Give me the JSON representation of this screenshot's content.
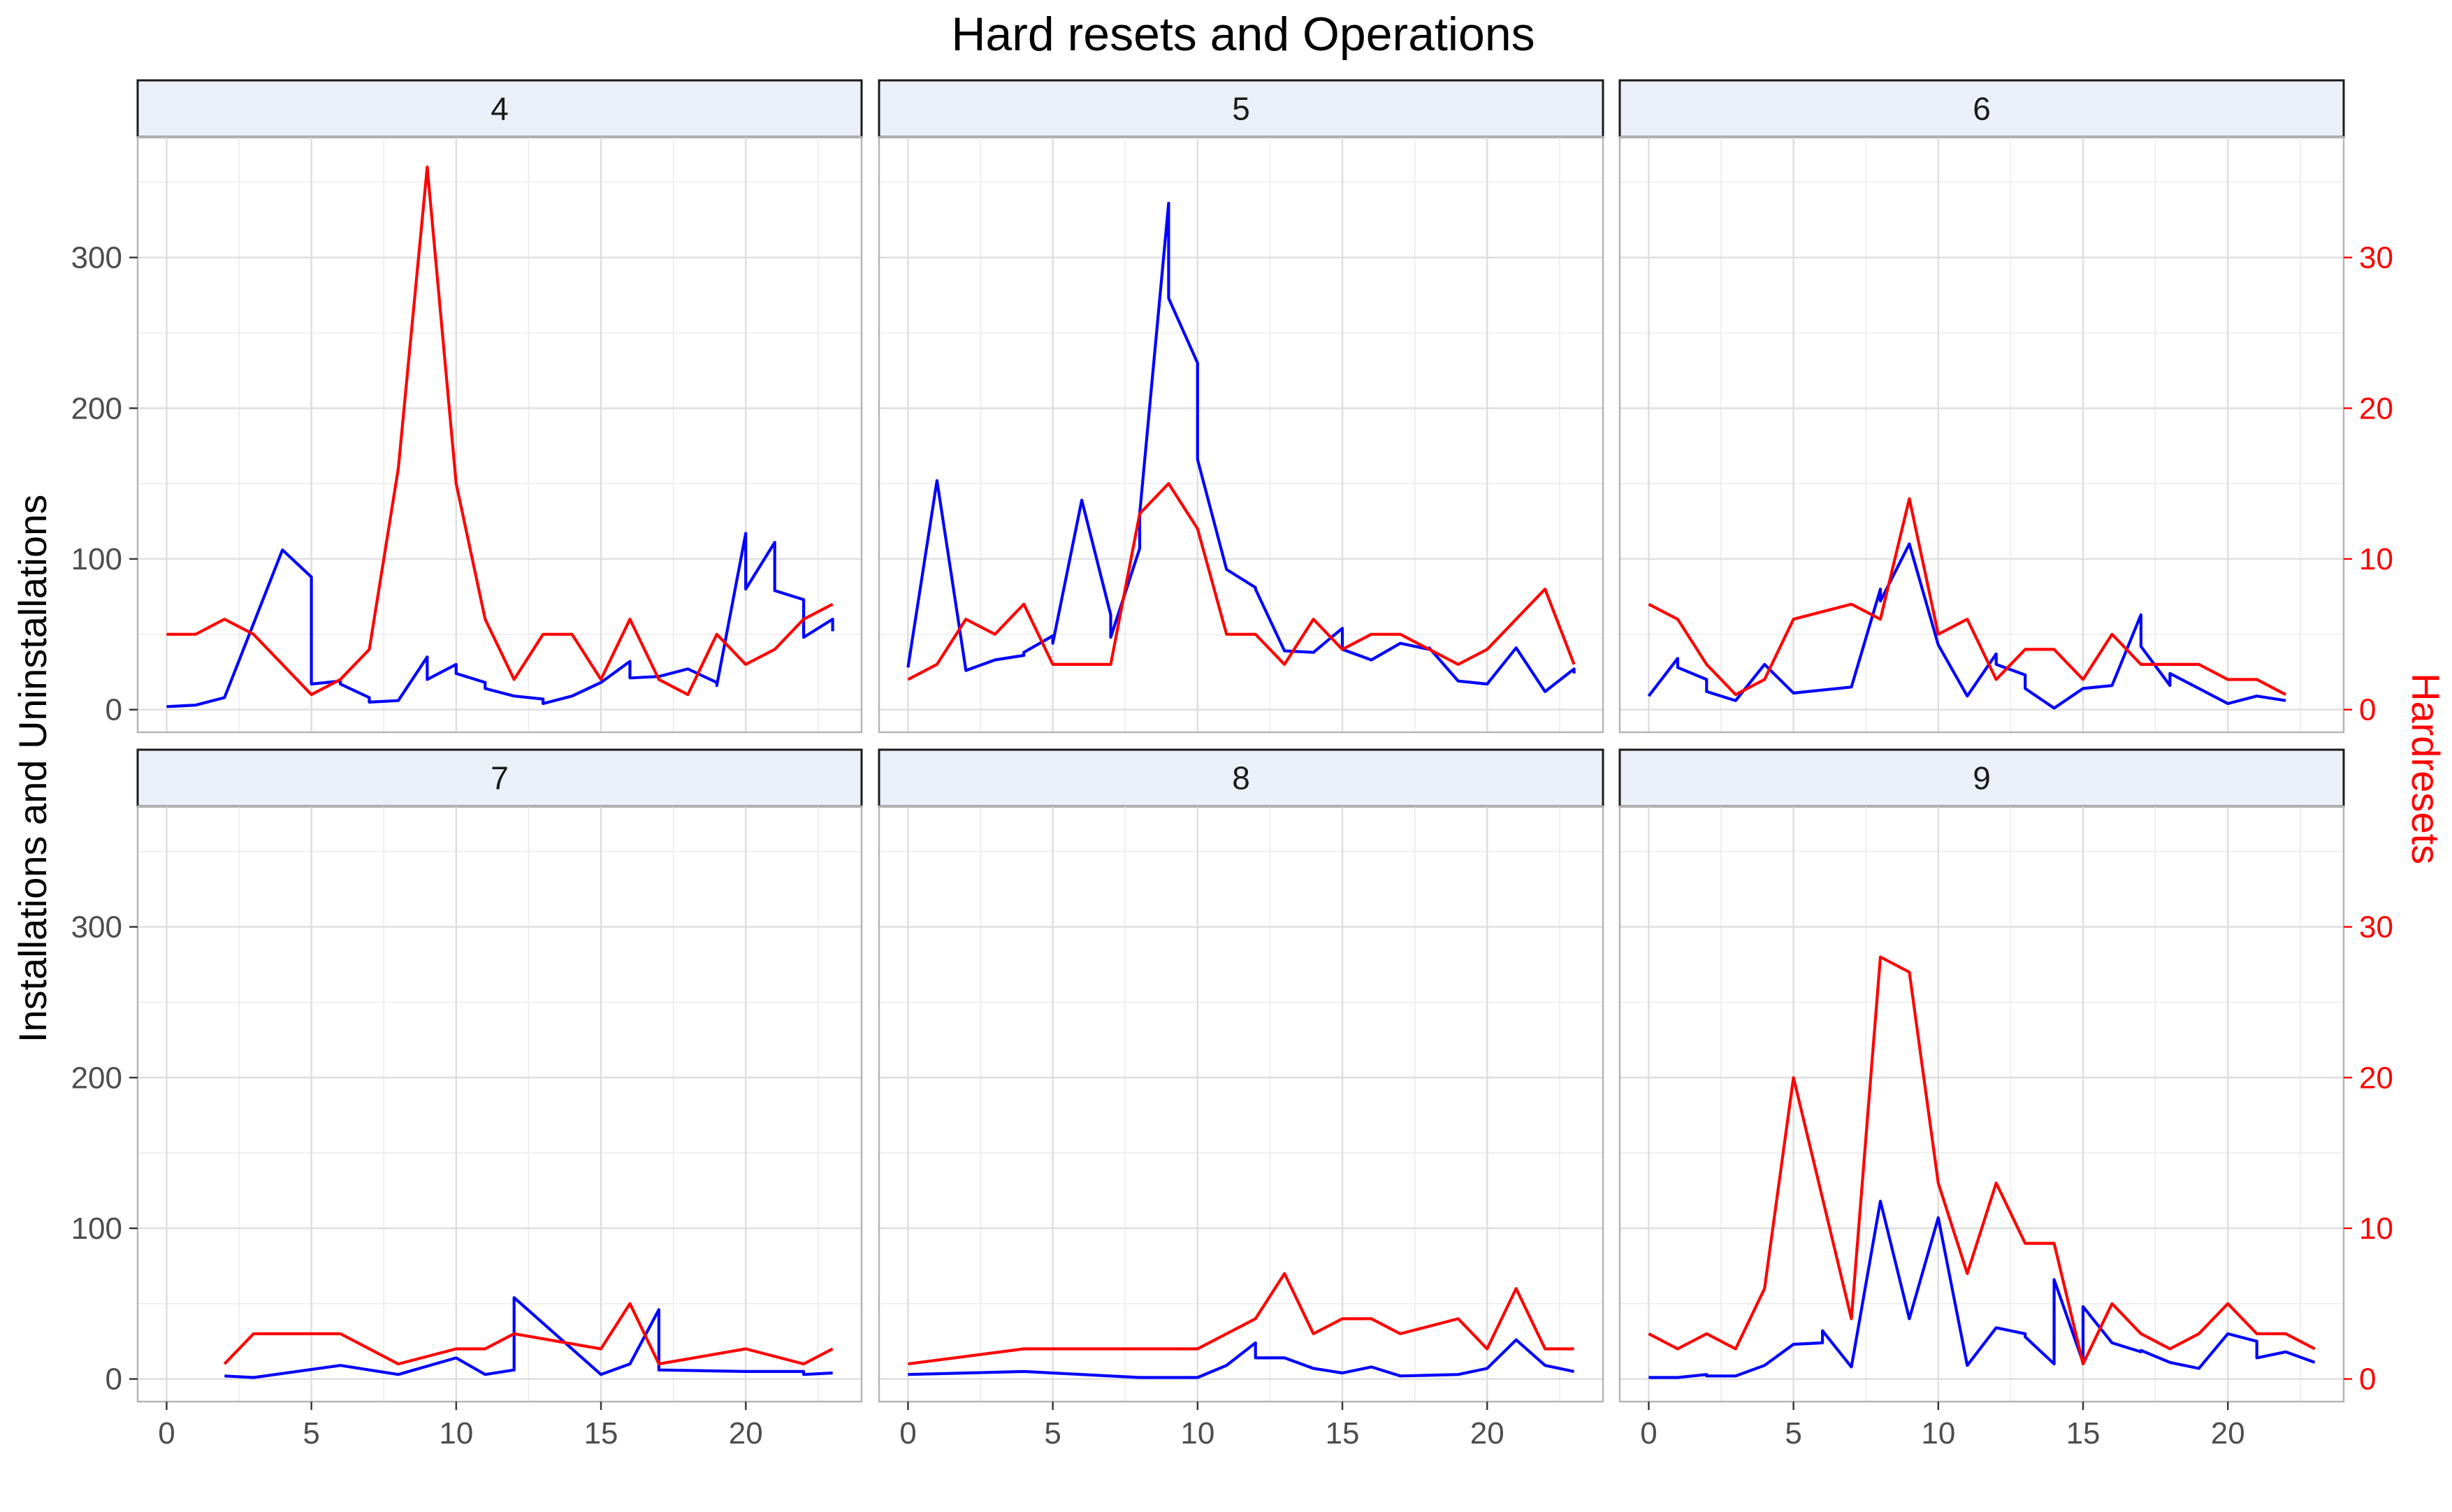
{
  "chart_data": {
    "type": "line",
    "title": "Hard resets and Operations",
    "y_left_label": "Installations and Uninstallations",
    "y_right_label": "Hardresets",
    "xlim": [
      -1,
      24
    ],
    "x_ticks": [
      0,
      5,
      10,
      15,
      20
    ],
    "y_left_lim": [
      -15,
      380
    ],
    "y_left_ticks": [
      0,
      100,
      200,
      300
    ],
    "y_right_lim": [
      -1.5,
      38
    ],
    "y_right_ticks": [
      0,
      10,
      20,
      30
    ],
    "grid": true,
    "colors": {
      "operations": "#0000ff",
      "hardresets": "#ff0000",
      "strip_bg": "#ebf0f8",
      "grid": "#dedede"
    },
    "panels": [
      {
        "label": "4",
        "operations": [
          [
            0,
            2
          ],
          [
            1,
            3
          ],
          [
            2,
            8
          ],
          [
            4,
            106
          ],
          [
            5,
            88
          ],
          [
            5,
            17
          ],
          [
            6,
            19
          ],
          [
            6,
            17
          ],
          [
            7,
            8
          ],
          [
            7,
            5
          ],
          [
            8,
            6
          ],
          [
            9,
            35
          ],
          [
            9,
            20
          ],
          [
            10,
            30
          ],
          [
            10,
            24
          ],
          [
            11,
            18
          ],
          [
            11,
            14
          ],
          [
            12,
            9
          ],
          [
            13,
            7
          ],
          [
            13,
            4
          ],
          [
            14,
            9
          ],
          [
            15,
            18
          ],
          [
            16,
            32
          ],
          [
            16,
            21
          ],
          [
            17,
            22
          ],
          [
            18,
            27
          ],
          [
            19,
            18
          ],
          [
            19,
            16
          ],
          [
            20,
            117
          ],
          [
            20,
            80
          ],
          [
            21,
            111
          ],
          [
            21,
            79
          ],
          [
            22,
            73
          ],
          [
            22,
            48
          ],
          [
            23,
            60
          ],
          [
            23,
            52
          ]
        ],
        "hardresets": [
          [
            0,
            5
          ],
          [
            1,
            5
          ],
          [
            2,
            6
          ],
          [
            3,
            5
          ],
          [
            4,
            3
          ],
          [
            5,
            1
          ],
          [
            6,
            2
          ],
          [
            7,
            4
          ],
          [
            8,
            16
          ],
          [
            9,
            36
          ],
          [
            10,
            15
          ],
          [
            11,
            6
          ],
          [
            12,
            2
          ],
          [
            13,
            5
          ],
          [
            14,
            5
          ],
          [
            15,
            2
          ],
          [
            16,
            6
          ],
          [
            17,
            2
          ],
          [
            18,
            1
          ],
          [
            19,
            5
          ],
          [
            20,
            3
          ],
          [
            21,
            4
          ],
          [
            22,
            6
          ],
          [
            23,
            7
          ]
        ]
      },
      {
        "label": "5",
        "operations": [
          [
            0,
            28
          ],
          [
            1,
            152
          ],
          [
            2,
            26
          ],
          [
            3,
            33
          ],
          [
            4,
            36
          ],
          [
            4,
            38
          ],
          [
            5,
            49
          ],
          [
            5,
            44
          ],
          [
            6,
            139
          ],
          [
            7,
            63
          ],
          [
            7,
            48
          ],
          [
            8,
            107
          ],
          [
            8,
            130
          ],
          [
            9,
            336
          ],
          [
            9,
            273
          ],
          [
            10,
            230
          ],
          [
            10,
            166
          ],
          [
            11,
            93
          ],
          [
            12,
            81
          ],
          [
            12,
            80
          ],
          [
            13,
            39
          ],
          [
            14,
            38
          ],
          [
            15,
            54
          ],
          [
            15,
            40
          ],
          [
            16,
            33
          ],
          [
            17,
            44
          ],
          [
            18,
            40
          ],
          [
            18,
            41
          ],
          [
            19,
            19
          ],
          [
            20,
            17
          ],
          [
            21,
            41
          ],
          [
            22,
            12
          ],
          [
            23,
            27
          ],
          [
            23,
            24
          ]
        ],
        "hardresets": [
          [
            0,
            2
          ],
          [
            1,
            3
          ],
          [
            2,
            6
          ],
          [
            3,
            5
          ],
          [
            4,
            7
          ],
          [
            5,
            3
          ],
          [
            6,
            3
          ],
          [
            7,
            3
          ],
          [
            8,
            13
          ],
          [
            9,
            15
          ],
          [
            10,
            12
          ],
          [
            11,
            5
          ],
          [
            12,
            5
          ],
          [
            13,
            3
          ],
          [
            14,
            6
          ],
          [
            15,
            4
          ],
          [
            16,
            5
          ],
          [
            17,
            5
          ],
          [
            18,
            4
          ],
          [
            19,
            3
          ],
          [
            20,
            4
          ],
          [
            21,
            6
          ],
          [
            22,
            8
          ],
          [
            23,
            3
          ]
        ]
      },
      {
        "label": "6",
        "operations": [
          [
            0,
            9
          ],
          [
            1,
            34
          ],
          [
            1,
            28
          ],
          [
            2,
            20
          ],
          [
            2,
            12
          ],
          [
            3,
            6
          ],
          [
            4,
            30
          ],
          [
            5,
            11
          ],
          [
            7,
            15
          ],
          [
            8,
            80
          ],
          [
            8,
            72
          ],
          [
            9,
            110
          ],
          [
            10,
            43
          ],
          [
            11,
            9
          ],
          [
            12,
            37
          ],
          [
            12,
            30
          ],
          [
            13,
            23
          ],
          [
            13,
            14
          ],
          [
            14,
            1
          ],
          [
            15,
            14
          ],
          [
            16,
            16
          ],
          [
            17,
            63
          ],
          [
            17,
            42
          ],
          [
            18,
            16
          ],
          [
            18,
            24
          ],
          [
            19,
            14
          ],
          [
            20,
            4
          ],
          [
            21,
            9
          ],
          [
            22,
            6
          ]
        ],
        "hardresets": [
          [
            0,
            7
          ],
          [
            1,
            6
          ],
          [
            2,
            3
          ],
          [
            3,
            1
          ],
          [
            4,
            2
          ],
          [
            5,
            6
          ],
          [
            7,
            7
          ],
          [
            8,
            6
          ],
          [
            9,
            14
          ],
          [
            10,
            5
          ],
          [
            11,
            6
          ],
          [
            12,
            2
          ],
          [
            13,
            4
          ],
          [
            14,
            4
          ],
          [
            15,
            2
          ],
          [
            16,
            5
          ],
          [
            17,
            3
          ],
          [
            18,
            3
          ],
          [
            19,
            3
          ],
          [
            20,
            2
          ],
          [
            21,
            2
          ],
          [
            22,
            1
          ]
        ]
      },
      {
        "label": "7",
        "operations": [
          [
            2,
            2
          ],
          [
            3,
            1
          ],
          [
            6,
            9
          ],
          [
            8,
            3
          ],
          [
            10,
            14
          ],
          [
            11,
            3
          ],
          [
            12,
            6
          ],
          [
            12,
            54
          ],
          [
            15,
            3
          ],
          [
            16,
            10
          ],
          [
            17,
            46
          ],
          [
            17,
            6
          ],
          [
            20,
            5
          ],
          [
            22,
            5
          ],
          [
            22,
            3
          ],
          [
            23,
            4
          ]
        ],
        "hardresets": [
          [
            2,
            1
          ],
          [
            3,
            3
          ],
          [
            6,
            3
          ],
          [
            8,
            1
          ],
          [
            10,
            2
          ],
          [
            11,
            2
          ],
          [
            12,
            3
          ],
          [
            15,
            2
          ],
          [
            16,
            5
          ],
          [
            17,
            1
          ],
          [
            20,
            2
          ],
          [
            22,
            1
          ],
          [
            23,
            2
          ]
        ]
      },
      {
        "label": "8",
        "operations": [
          [
            0,
            3
          ],
          [
            4,
            5
          ],
          [
            8,
            1
          ],
          [
            10,
            1
          ],
          [
            11,
            9
          ],
          [
            12,
            24
          ],
          [
            12,
            14
          ],
          [
            13,
            14
          ],
          [
            14,
            7
          ],
          [
            15,
            4
          ],
          [
            16,
            8
          ],
          [
            17,
            2
          ],
          [
            19,
            3
          ],
          [
            20,
            7
          ],
          [
            21,
            26
          ],
          [
            22,
            9
          ],
          [
            23,
            5
          ]
        ],
        "hardresets": [
          [
            0,
            1
          ],
          [
            4,
            2
          ],
          [
            8,
            2
          ],
          [
            10,
            2
          ],
          [
            12,
            4
          ],
          [
            13,
            7
          ],
          [
            14,
            3
          ],
          [
            15,
            4
          ],
          [
            16,
            4
          ],
          [
            17,
            3
          ],
          [
            19,
            4
          ],
          [
            20,
            2
          ],
          [
            21,
            6
          ],
          [
            22,
            2
          ],
          [
            23,
            2
          ]
        ]
      },
      {
        "label": "9",
        "operations": [
          [
            0,
            1
          ],
          [
            1,
            1
          ],
          [
            2,
            3
          ],
          [
            2,
            2
          ],
          [
            3,
            2
          ],
          [
            4,
            9
          ],
          [
            5,
            23
          ],
          [
            6,
            24
          ],
          [
            6,
            32
          ],
          [
            7,
            8
          ],
          [
            8,
            118
          ],
          [
            9,
            40
          ],
          [
            10,
            107
          ],
          [
            11,
            9
          ],
          [
            12,
            34
          ],
          [
            13,
            30
          ],
          [
            13,
            28
          ],
          [
            14,
            10
          ],
          [
            14,
            66
          ],
          [
            15,
            11
          ],
          [
            15,
            48
          ],
          [
            16,
            24
          ],
          [
            17,
            18
          ],
          [
            17,
            19
          ],
          [
            18,
            11
          ],
          [
            19,
            7
          ],
          [
            20,
            30
          ],
          [
            21,
            25
          ],
          [
            21,
            14
          ],
          [
            22,
            18
          ],
          [
            23,
            11
          ]
        ],
        "hardresets": [
          [
            0,
            3
          ],
          [
            1,
            2
          ],
          [
            2,
            3
          ],
          [
            3,
            2
          ],
          [
            4,
            6
          ],
          [
            5,
            20
          ],
          [
            6,
            12
          ],
          [
            7,
            4
          ],
          [
            8,
            28
          ],
          [
            9,
            27
          ],
          [
            10,
            13
          ],
          [
            11,
            7
          ],
          [
            12,
            13
          ],
          [
            13,
            9
          ],
          [
            14,
            9
          ],
          [
            15,
            1
          ],
          [
            16,
            5
          ],
          [
            17,
            3
          ],
          [
            18,
            2
          ],
          [
            19,
            3
          ],
          [
            20,
            5
          ],
          [
            21,
            3
          ],
          [
            22,
            3
          ],
          [
            23,
            2
          ]
        ]
      }
    ]
  }
}
